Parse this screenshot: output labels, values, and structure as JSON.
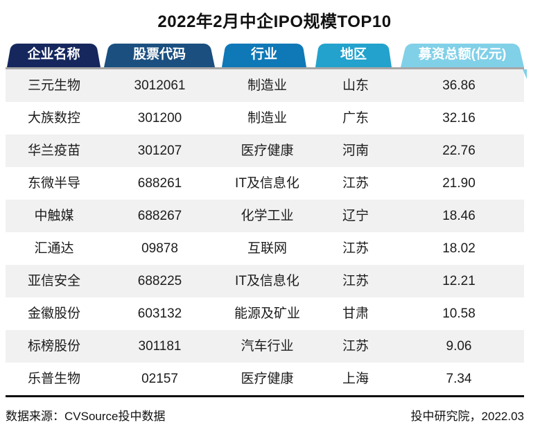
{
  "title": "2022年2月中企IPO规模TOP10",
  "table": {
    "columns": [
      {
        "key": "company",
        "label": "企业名称",
        "color": "#15275d"
      },
      {
        "key": "code",
        "label": "股票代码",
        "color": "#1a4f80"
      },
      {
        "key": "industry",
        "label": "行业",
        "color": "#0f78b6"
      },
      {
        "key": "region",
        "label": "地区",
        "color": "#22a2cc"
      },
      {
        "key": "amount",
        "label": "募资总额(亿元)",
        "color": "#80d0e8"
      }
    ],
    "rows": [
      [
        "三元生物",
        "3012061",
        "制造业",
        "山东",
        "36.86"
      ],
      [
        "大族数控",
        "301200",
        "制造业",
        "广东",
        "32.16"
      ],
      [
        "华兰疫苗",
        "301207",
        "医疗健康",
        "河南",
        "22.76"
      ],
      [
        "东微半导",
        "688261",
        "IT及信息化",
        "江苏",
        "21.90"
      ],
      [
        "中触媒",
        "688267",
        "化学工业",
        "辽宁",
        "18.46"
      ],
      [
        "汇通达",
        "09878",
        "互联网",
        "江苏",
        "18.02"
      ],
      [
        "亚信安全",
        "688225",
        "IT及信息化",
        "江苏",
        "12.21"
      ],
      [
        "金徽股份",
        "603132",
        "能源及矿业",
        "甘肃",
        "10.58"
      ],
      [
        "标榜股份",
        "301181",
        "汽车行业",
        "江苏",
        "9.06"
      ],
      [
        "乐普生物",
        "02157",
        "医疗健康",
        "上海",
        "7.34"
      ]
    ]
  },
  "footer": {
    "source": "数据来源：CVSource投中数据",
    "credit": "投中研究院，2022.03"
  },
  "colors": {
    "header_underline": "#a6a6a6",
    "row_stripe": "#f1f1f1",
    "bottom_rule": "#0d0d0d",
    "text": "#1c1c1c",
    "tab_text": "#ffffff"
  },
  "chart_data": {
    "type": "table",
    "title": "2022年2月中企IPO规模TOP10",
    "columns": [
      "企业名称",
      "股票代码",
      "行业",
      "地区",
      "募资总额(亿元)"
    ],
    "rows": [
      [
        "三元生物",
        "3012061",
        "制造业",
        "山东",
        36.86
      ],
      [
        "大族数控",
        "301200",
        "制造业",
        "广东",
        32.16
      ],
      [
        "华兰疫苗",
        "301207",
        "医疗健康",
        "河南",
        22.76
      ],
      [
        "东微半导",
        "688261",
        "IT及信息化",
        "江苏",
        21.9
      ],
      [
        "中触媒",
        "688267",
        "化学工业",
        "辽宁",
        18.46
      ],
      [
        "汇通达",
        "09878",
        "互联网",
        "江苏",
        18.02
      ],
      [
        "亚信安全",
        "688225",
        "IT及信息化",
        "江苏",
        12.21
      ],
      [
        "金徽股份",
        "603132",
        "能源及矿业",
        "甘肃",
        10.58
      ],
      [
        "标榜股份",
        "301181",
        "汽车行业",
        "江苏",
        9.06
      ],
      [
        "乐普生物",
        "02157",
        "医疗健康",
        "上海",
        7.34
      ]
    ],
    "source_note": "数据来源：CVSource投中数据",
    "credit_note": "投中研究院，2022.03"
  }
}
